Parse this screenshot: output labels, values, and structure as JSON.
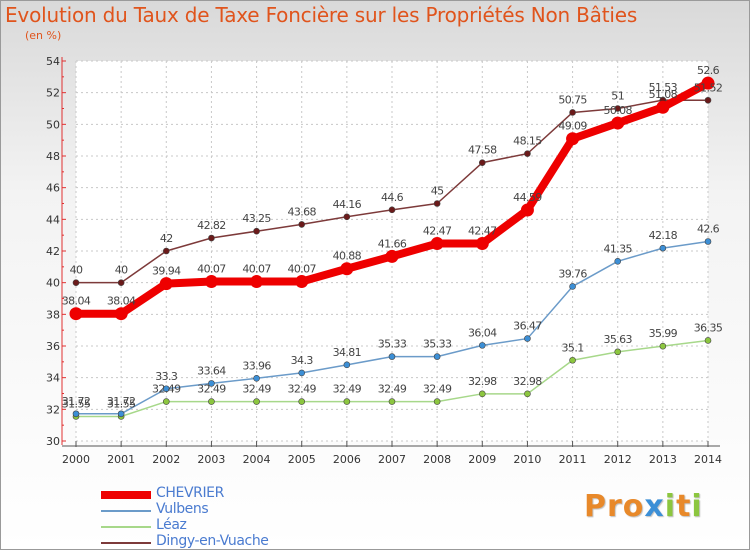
{
  "title": "Evolution du Taux de Taxe Foncière sur les Propriétés Non Bâties",
  "unit_label": "(en %)",
  "logo": {
    "text": "Proxiti",
    "letters": [
      {
        "ch": "P",
        "color": "#e8892a"
      },
      {
        "ch": "r",
        "color": "#e8892a"
      },
      {
        "ch": "o",
        "color": "#e8892a"
      },
      {
        "ch": "x",
        "color": "#3c8fd6"
      },
      {
        "ch": "i",
        "color": "#8cc63f"
      },
      {
        "ch": "t",
        "color": "#e8892a"
      },
      {
        "ch": "i",
        "color": "#8cc63f"
      }
    ]
  },
  "chart_data": {
    "type": "line",
    "title": "Evolution du Taux de Taxe Foncière sur les Propriétés Non Bâties",
    "ylabel": "(en %)",
    "xlabel": "",
    "ylim": [
      30,
      54
    ],
    "yticks": [
      "30",
      "32",
      "34",
      "36",
      "38",
      "40",
      "42",
      "44",
      "46",
      "48",
      "50",
      "52",
      "54"
    ],
    "x": [
      "2000",
      "2001",
      "2002",
      "2003",
      "2004",
      "2005",
      "2006",
      "2007",
      "2008",
      "2009",
      "2010",
      "2011",
      "2012",
      "2013",
      "2014"
    ],
    "grid": true,
    "legend_position": "bottom-left",
    "series": [
      {
        "name": "CHEVRIER",
        "color": "#ee0000",
        "marker_color": "#ee0000",
        "values": [
          38.04,
          38.04,
          39.94,
          40.07,
          40.07,
          40.07,
          40.88,
          41.66,
          42.47,
          42.47,
          44.59,
          49.09,
          50.08,
          51.08,
          52.6
        ],
        "labels": [
          "38.04",
          "38.04",
          "39.94",
          "40.07",
          "40.07",
          "40.07",
          "40.88",
          "41.66",
          "42.47",
          "42.47",
          "44.59",
          "49.09",
          "50.08",
          "51.08",
          "52.6"
        ]
      },
      {
        "name": "Vulbens",
        "color": "#6b9bc9",
        "marker_color": "#3c8fd6",
        "values": [
          31.72,
          31.72,
          33.3,
          33.64,
          33.96,
          34.3,
          34.81,
          35.33,
          35.33,
          36.04,
          36.47,
          39.76,
          41.35,
          42.18,
          42.6
        ],
        "labels": [
          "31.72",
          "31.72",
          "33.3",
          "33.64",
          "33.96",
          "34.3",
          "34.81",
          "35.33",
          "35.33",
          "36.04",
          "36.47",
          "39.76",
          "41.35",
          "42.18",
          "42.6"
        ]
      },
      {
        "name": "Léaz",
        "color": "#a7d88a",
        "marker_color": "#8cc63f",
        "values": [
          31.55,
          31.55,
          32.49,
          32.49,
          32.49,
          32.49,
          32.49,
          32.49,
          32.49,
          32.98,
          32.98,
          35.1,
          35.63,
          35.99,
          36.35
        ],
        "labels": [
          "31.55",
          "31.55",
          "32.49",
          "32.49",
          "32.49",
          "32.49",
          "32.49",
          "32.49",
          "32.49",
          "32.98",
          "32.98",
          "35.1",
          "35.63",
          "35.99",
          "36.35"
        ]
      },
      {
        "name": "Dingy-en-Vuache",
        "color": "#7d3a3a",
        "marker_color": "#6b1a1a",
        "values": [
          40,
          40,
          42,
          42.82,
          43.25,
          43.68,
          44.16,
          44.6,
          45,
          47.58,
          48.15,
          50.75,
          51,
          51.53,
          51.52
        ],
        "labels": [
          "40",
          "40",
          "42",
          "42.82",
          "43.25",
          "43.68",
          "44.16",
          "44.6",
          "45",
          "47.58",
          "48.15",
          "50.75",
          "51",
          "51.53",
          "51.52"
        ]
      }
    ]
  }
}
